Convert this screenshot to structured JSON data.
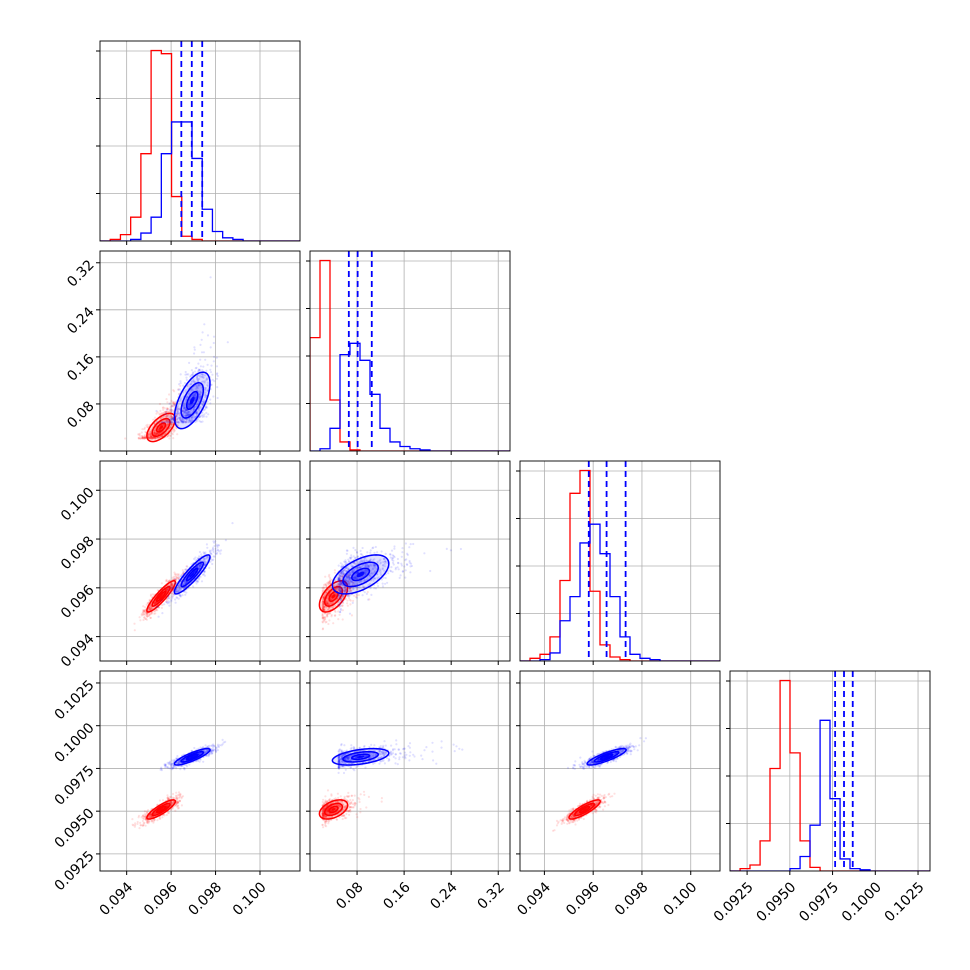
{
  "chart_data": {
    "type": "corner",
    "dimensions": 4,
    "series": [
      {
        "color": "#ff0000",
        "hist_color": "#dd0000"
      },
      {
        "color": "#0000ff",
        "hist_color": "#0000dd"
      }
    ],
    "colors": {
      "red": "#ff0000",
      "blue": "#0000ff"
    },
    "axes": [
      {
        "range": [
          0.0928,
          0.1018
        ],
        "ticks": [
          0.094,
          0.096,
          0.098,
          0.1
        ],
        "tick_labels": [
          "0.094",
          "0.096",
          "0.098",
          "0.100"
        ]
      },
      {
        "range": [
          0.0,
          0.34
        ],
        "ticks": [
          0.08,
          0.16,
          0.24,
          0.32
        ],
        "tick_labels": [
          "0.08",
          "0.16",
          "0.24",
          "0.32"
        ]
      },
      {
        "range": [
          0.093,
          0.1012
        ],
        "ticks": [
          0.094,
          0.096,
          0.098,
          0.1
        ],
        "tick_labels": [
          "0.094",
          "0.096",
          "0.098",
          "0.100"
        ]
      },
      {
        "range": [
          0.0915,
          0.1032
        ],
        "ticks": [
          0.0925,
          0.095,
          0.0975,
          0.1,
          0.1025
        ],
        "tick_labels": [
          "0.0925",
          "0.0950",
          "0.0975",
          "0.1000",
          "0.1025"
        ]
      }
    ],
    "histograms": [
      {
        "bin_edges": [
          0.0928,
          0.09326,
          0.09372,
          0.09418,
          0.09464,
          0.0951,
          0.09556,
          0.09602,
          0.09648,
          0.09694,
          0.0974,
          0.09786,
          0.09832,
          0.09878,
          0.09924,
          0.0997,
          0.10016,
          0.10062,
          0.10108,
          0.10154,
          0.102
        ],
        "red": [
          0,
          1,
          4,
          15,
          55,
          120,
          118,
          28,
          3,
          1,
          0,
          0,
          0,
          0,
          0,
          0,
          0,
          0,
          0,
          0
        ],
        "blue": [
          0,
          0,
          0,
          1,
          5,
          15,
          55,
          75,
          75,
          52,
          20,
          6,
          2,
          1,
          0,
          0,
          0,
          0,
          0,
          0
        ],
        "blue_quantiles": [
          0.09646,
          0.09693,
          0.0974
        ]
      },
      {
        "bin_edges": [
          0.0,
          0.017,
          0.034,
          0.051,
          0.068,
          0.085,
          0.102,
          0.119,
          0.136,
          0.153,
          0.17,
          0.187,
          0.204,
          0.221,
          0.238,
          0.255,
          0.272,
          0.289,
          0.306,
          0.323,
          0.34
        ],
        "red": [
          100,
          168,
          45,
          8,
          1,
          0,
          0,
          0,
          0,
          0,
          0,
          0,
          0,
          0,
          0,
          0,
          0,
          0,
          0,
          0
        ],
        "blue": [
          0,
          2,
          20,
          85,
          95,
          80,
          50,
          20,
          8,
          4,
          2,
          1,
          0,
          0,
          0,
          0,
          0,
          0,
          0,
          0
        ],
        "blue_quantiles": [
          0.066,
          0.081,
          0.105
        ]
      },
      {
        "bin_edges": [
          0.093,
          0.09341,
          0.09382,
          0.09423,
          0.09464,
          0.09505,
          0.09546,
          0.09587,
          0.09628,
          0.09669,
          0.0971,
          0.09751,
          0.09792,
          0.09833,
          0.09874,
          0.09915,
          0.09956,
          0.09997,
          0.10038,
          0.10079,
          0.1012
        ],
        "red": [
          0,
          2,
          5,
          18,
          60,
          125,
          142,
          52,
          12,
          3,
          1,
          0,
          0,
          0,
          0,
          0,
          0,
          0,
          0,
          0
        ],
        "blue": [
          0,
          0,
          1,
          6,
          30,
          48,
          88,
          102,
          80,
          48,
          18,
          5,
          2,
          1,
          0,
          0,
          0,
          0,
          0,
          0
        ],
        "blue_quantiles": [
          0.09582,
          0.09655,
          0.09733
        ]
      },
      {
        "bin_edges": [
          0.0915,
          0.09209,
          0.09267,
          0.09326,
          0.09384,
          0.09443,
          0.09501,
          0.0956,
          0.09618,
          0.09677,
          0.09735,
          0.09794,
          0.09852,
          0.09911,
          0.09969,
          0.10028,
          0.10086,
          0.10145,
          0.10203,
          0.10262,
          0.1032
        ],
        "red": [
          0,
          2,
          5,
          25,
          85,
          158,
          98,
          25,
          3,
          0,
          0,
          0,
          0,
          0,
          0,
          0,
          0,
          0,
          0,
          0
        ],
        "blue": [
          0,
          0,
          0,
          0,
          0,
          0,
          2,
          12,
          38,
          125,
          60,
          10,
          2,
          1,
          0,
          0,
          0,
          0,
          0,
          0
        ],
        "blue_quantiles": [
          0.09765,
          0.09817,
          0.09868
        ]
      }
    ],
    "correlations": {
      "red": {
        "means": [
          0.09555,
          0.04,
          0.09565,
          0.0951
        ],
        "sd": [
          0.0004,
          0.015,
          0.0004,
          0.00035
        ]
      },
      "blue": {
        "means": [
          0.09695,
          0.086,
          0.09655,
          0.09818
        ],
        "sd": [
          0.0005,
          0.03,
          0.0005,
          0.0003
        ]
      },
      "rho": {
        "0-2": 0.9,
        "0-3": 0.85,
        "2-3": 0.85,
        "0-1": 0.6,
        "1-2": 0.55,
        "1-3": 0.45
      }
    }
  }
}
